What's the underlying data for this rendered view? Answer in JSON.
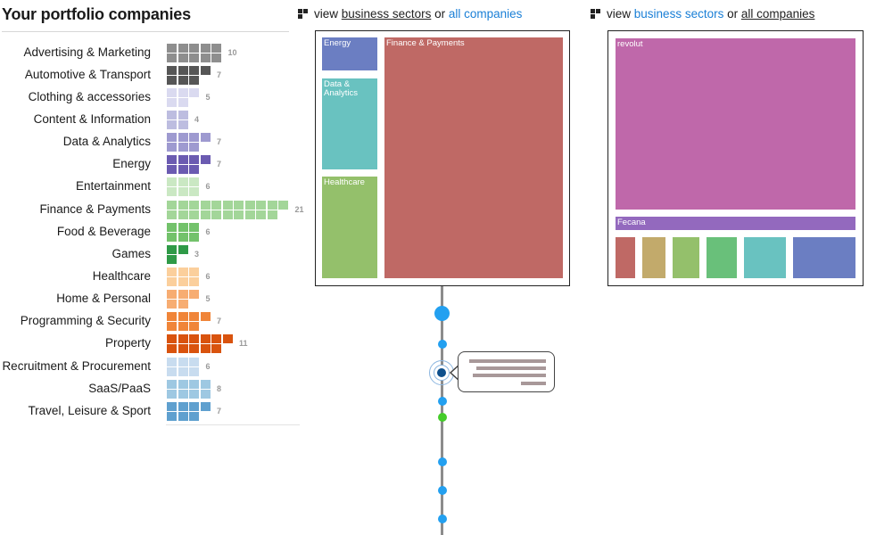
{
  "left_panel": {
    "title": "Your portfolio companies",
    "categories": [
      {
        "label": "Advertising & Marketing",
        "count": 10,
        "color": "#8e8e8e"
      },
      {
        "label": "Automotive & Transport",
        "count": 7,
        "color": "#565656"
      },
      {
        "label": "Clothing & accessories",
        "count": 5,
        "color": "#dadaf0"
      },
      {
        "label": "Content & Information",
        "count": 4,
        "color": "#bdbde0"
      },
      {
        "label": "Data & Analytics",
        "count": 7,
        "color": "#9e9ad0"
      },
      {
        "label": "Energy",
        "count": 7,
        "color": "#6b5bb1"
      },
      {
        "label": "Entertainment",
        "count": 6,
        "color": "#cae8c3"
      },
      {
        "label": "Finance & Payments",
        "count": 21,
        "color": "#a3d699"
      },
      {
        "label": "Food & Beverage",
        "count": 6,
        "color": "#73c26b"
      },
      {
        "label": "Games",
        "count": 3,
        "color": "#2f9a47"
      },
      {
        "label": "Healthcare",
        "count": 6,
        "color": "#fbcf9c"
      },
      {
        "label": "Home & Personal",
        "count": 5,
        "color": "#f7ad72"
      },
      {
        "label": "Programming & Security",
        "count": 7,
        "color": "#f08539"
      },
      {
        "label": "Property",
        "count": 11,
        "color": "#d9530e"
      },
      {
        "label": "Recruitment & Procurement",
        "count": 6,
        "color": "#c8dcef"
      },
      {
        "label": "SaaS/PaaS",
        "count": 8,
        "color": "#9ec8e2"
      },
      {
        "label": "Travel, Leisure & Sport",
        "count": 7,
        "color": "#5fa0cf"
      }
    ]
  },
  "sector_view": {
    "prefix": "view",
    "link1": "business sectors",
    "or": "or",
    "link2": "all companies",
    "tiles": [
      {
        "label": "Energy",
        "color": "#6b7ec2"
      },
      {
        "label": "Finance & Payments",
        "color": "#bf6965"
      },
      {
        "label": "Data &\nAnalytics",
        "color": "#69c2c0"
      },
      {
        "label": "Healthcare",
        "color": "#94c06b"
      }
    ]
  },
  "company_view": {
    "prefix": "view",
    "link1": "business sectors",
    "or": "or",
    "link2": "all companies",
    "tiles": [
      {
        "label": "revolut",
        "color": "#bf68aa"
      },
      {
        "label": "Fecana",
        "color": "#9369be"
      },
      {
        "label": "",
        "color": "#bf6965"
      },
      {
        "label": "",
        "color": "#c2aa6b"
      },
      {
        "label": "",
        "color": "#94c06b"
      },
      {
        "label": "",
        "color": "#69c07a"
      },
      {
        "label": "",
        "color": "#69c2c0"
      },
      {
        "label": "",
        "color": "#6b7ec2"
      }
    ]
  },
  "timeline": {
    "dot_color": "#23a0f0",
    "highlight_color": "#45cc2a",
    "selected_color": "#0d4f8c"
  }
}
